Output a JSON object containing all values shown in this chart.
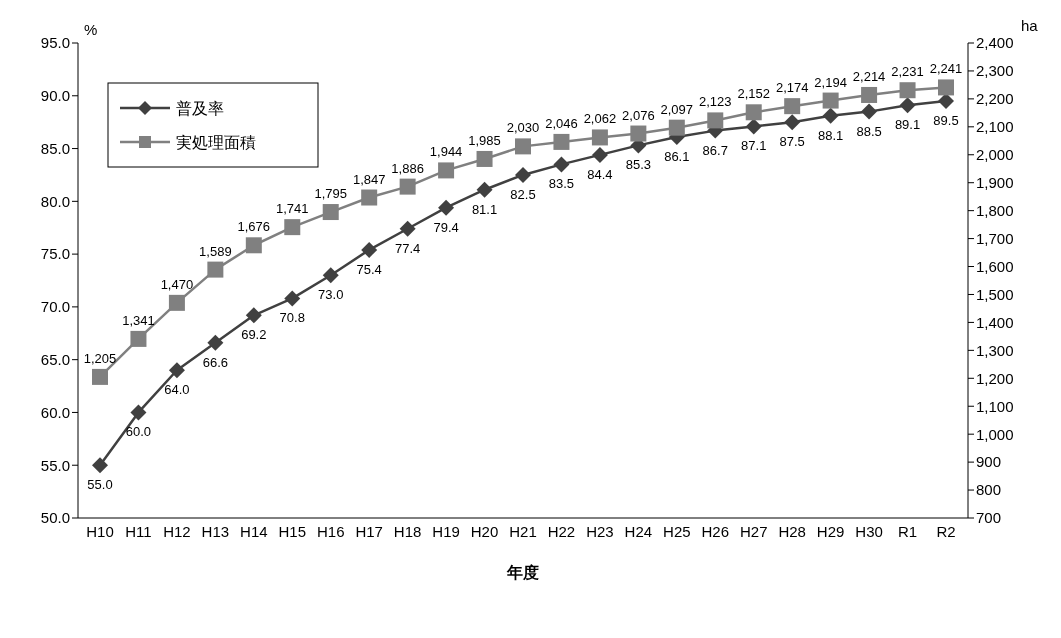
{
  "chart_data": {
    "type": "line",
    "xlabel": "年度",
    "ylabel": "%",
    "y2label": "ha",
    "categories": [
      "H10",
      "H11",
      "H12",
      "H13",
      "H14",
      "H15",
      "H16",
      "H17",
      "H18",
      "H19",
      "H20",
      "H21",
      "H22",
      "H23",
      "H24",
      "H25",
      "H26",
      "H27",
      "H28",
      "H29",
      "H30",
      "R1",
      "R2"
    ],
    "series": [
      {
        "name": "普及率",
        "color": "#404040",
        "marker": "diamond",
        "values": [
          55.0,
          60.0,
          64.0,
          66.6,
          69.2,
          70.8,
          73.0,
          75.4,
          77.4,
          79.4,
          81.1,
          82.5,
          83.5,
          84.4,
          85.3,
          86.1,
          86.7,
          87.1,
          87.5,
          88.1,
          88.5,
          89.1,
          89.5
        ],
        "value_labels": [
          "55.0",
          "60.0",
          "64.0",
          "66.6",
          "69.2",
          "70.8",
          "73.0",
          "75.4",
          "77.4",
          "79.4",
          "81.1",
          "82.5",
          "83.5",
          "84.4",
          "85.3",
          "86.1",
          "86.7",
          "87.1",
          "87.5",
          "88.1",
          "88.5",
          "89.1",
          "89.5"
        ]
      },
      {
        "name": "実処理面積",
        "color": "#808080",
        "marker": "square",
        "axis": "y2",
        "values": [
          1205,
          1341,
          1470,
          1589,
          1676,
          1741,
          1795,
          1847,
          1886,
          1944,
          1985,
          2030,
          2046,
          2062,
          2076,
          2097,
          2123,
          2152,
          2174,
          2194,
          2214,
          2231,
          2241
        ],
        "value_labels": [
          "1,205",
          "1,341",
          "1,470",
          "1,589",
          "1,676",
          "1,741",
          "1,795",
          "1,847",
          "1,886",
          "1,944",
          "1,985",
          "2,030",
          "2,046",
          "2,062",
          "2,076",
          "2,097",
          "2,123",
          "2,152",
          "2,174",
          "2,194",
          "2,214",
          "2,231",
          "2,241"
        ]
      }
    ],
    "ylim": [
      50,
      95
    ],
    "yticks": [
      {
        "value": 50,
        "label": "50.0"
      },
      {
        "value": 55,
        "label": "55.0"
      },
      {
        "value": 60,
        "label": "60.0"
      },
      {
        "value": 65,
        "label": "65.0"
      },
      {
        "value": 70,
        "label": "70.0"
      },
      {
        "value": 75,
        "label": "75.0"
      },
      {
        "value": 80,
        "label": "80.0"
      },
      {
        "value": 85,
        "label": "85.0"
      },
      {
        "value": 90,
        "label": "90.0"
      },
      {
        "value": 95,
        "label": "95.0"
      }
    ],
    "y2lim": [
      700,
      2400
    ],
    "y2ticks": [
      700,
      800,
      900,
      {
        "value": 1000,
        "label": "1,000"
      },
      {
        "value": 1100,
        "label": "1,100"
      },
      {
        "value": 1200,
        "label": "1,200"
      },
      {
        "value": 1300,
        "label": "1,300"
      },
      {
        "value": 1400,
        "label": "1,400"
      },
      {
        "value": 1500,
        "label": "1,500"
      },
      {
        "value": 1600,
        "label": "1,600"
      },
      {
        "value": 1700,
        "label": "1,700"
      },
      {
        "value": 1800,
        "label": "1,800"
      },
      {
        "value": 1900,
        "label": "1,900"
      },
      {
        "value": 2000,
        "label": "2,000"
      },
      {
        "value": 2100,
        "label": "2,100"
      },
      {
        "value": 2200,
        "label": "2,200"
      },
      {
        "value": 2300,
        "label": "2,300"
      },
      {
        "value": 2400,
        "label": "2,400"
      }
    ],
    "grid": false,
    "legend": "top left"
  }
}
